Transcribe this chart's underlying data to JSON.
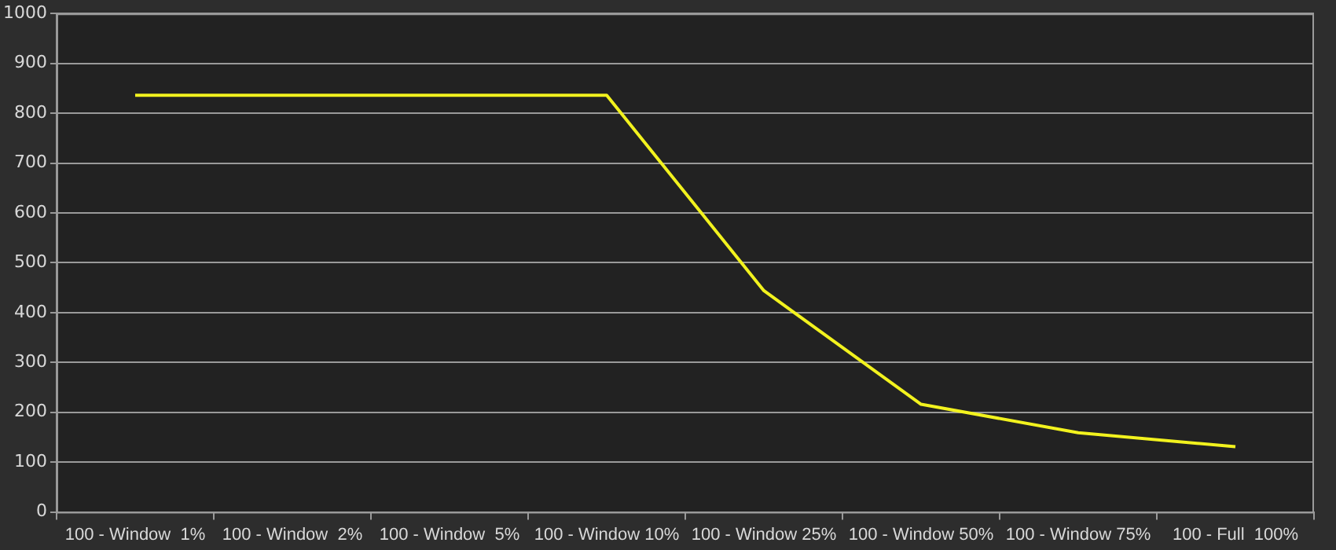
{
  "chart_data": {
    "type": "line",
    "categories": [
      "100 - Window  1%",
      "100 - Window  2%",
      "100 - Window  5%",
      "100 - Window 10%",
      "100 - Window 25%",
      "100 - Window 50%",
      "100 - Window 75%",
      "100 - Full  100%"
    ],
    "series": [
      {
        "color": "#f2f21e",
        "values": [
          836,
          836,
          836,
          836,
          444,
          216,
          159,
          131
        ]
      }
    ],
    "ylim": [
      0,
      1000
    ],
    "yticks": [
      0,
      100,
      200,
      300,
      400,
      500,
      600,
      700,
      800,
      900,
      1000
    ],
    "grid": "y",
    "legend": false,
    "marker": "none",
    "line_style": "solid"
  }
}
